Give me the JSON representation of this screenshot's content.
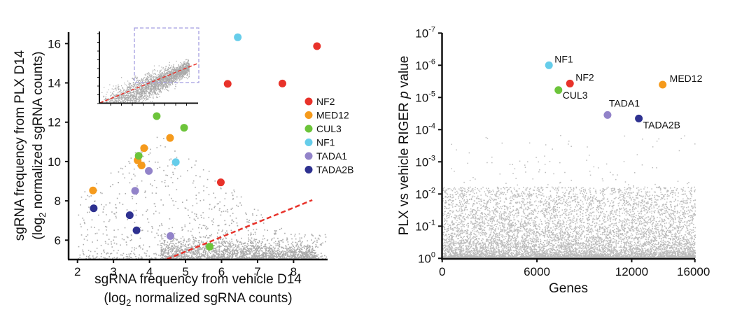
{
  "chart_data": [
    {
      "type": "scatter",
      "xlabel": [
        "sgRNA frequency from vehicle D14",
        "(log",
        "2",
        " normalized sgRNA counts)"
      ],
      "ylabel": [
        "sgRNA frequency from PLX D14",
        "(log",
        "2",
        " normalized sgRNA counts)"
      ],
      "xlim": [
        1.75,
        9.0
      ],
      "ylim": [
        5.05,
        16.55
      ],
      "xticks": [
        "2",
        "3",
        "4",
        "5",
        "6",
        "7",
        "8"
      ],
      "yticks": [
        "6",
        "8",
        "10",
        "12",
        "14",
        "16"
      ],
      "reference_line": {
        "style": "red dashed",
        "from": [
          4.48,
          5.03
        ],
        "to": [
          8.52,
          8.04
        ]
      },
      "inset": "full-range scatter with dashed box marking zoomed region and red dashed diagonal",
      "background_points": "gray, dense near x 5-8, y 5-6, sparse above",
      "legend": {
        "placement": "right",
        "entries": [
          "NF2",
          "MED12",
          "CUL3",
          "NF1",
          "TADA1",
          "TADA2B"
        ]
      },
      "colors": {
        "NF2": "#e8322a",
        "MED12": "#f59a1c",
        "CUL3": "#6cc43a",
        "NF1": "#66cdea",
        "TADA1": "#9283c9",
        "TADA2B": "#2e3190",
        "background": "#aaaaaa"
      },
      "series": [
        {
          "name": "NF2",
          "points": [
            [
              8.65,
              15.87
            ],
            [
              6.17,
              13.95
            ],
            [
              7.69,
              13.97
            ],
            [
              5.98,
              8.94
            ]
          ]
        },
        {
          "name": "MED12",
          "points": [
            [
              4.57,
              11.2
            ],
            [
              3.85,
              10.68
            ],
            [
              3.67,
              10.06
            ],
            [
              3.78,
              9.8
            ],
            [
              2.43,
              8.53
            ]
          ]
        },
        {
          "name": "CUL3",
          "points": [
            [
              4.2,
              12.31
            ],
            [
              4.96,
              11.72
            ],
            [
              3.7,
              10.29
            ],
            [
              5.67,
              5.67
            ]
          ]
        },
        {
          "name": "NF1",
          "points": [
            [
              6.45,
              16.32
            ],
            [
              4.73,
              9.97
            ]
          ]
        },
        {
          "name": "TADA1",
          "points": [
            [
              3.98,
              9.52
            ],
            [
              3.6,
              8.51
            ],
            [
              4.58,
              6.21
            ]
          ]
        },
        {
          "name": "TADA2B",
          "points": [
            [
              2.45,
              7.62
            ],
            [
              3.45,
              7.27
            ],
            [
              3.64,
              6.5
            ]
          ]
        }
      ]
    },
    {
      "type": "scatter",
      "xlabel": "Genes",
      "ylabel": [
        "PLX vs vehicle RIGER ",
        "p",
        " value"
      ],
      "xlim": [
        0,
        16000
      ],
      "ylim_log10_p": [
        0,
        -7
      ],
      "y_scale": "log (reversed)",
      "xticks": [
        "0",
        "6000",
        "12000",
        "16000"
      ],
      "yticks": [
        {
          "base": "10",
          "exp": "0"
        },
        {
          "base": "10",
          "exp": "-1"
        },
        {
          "base": "10",
          "exp": "-2"
        },
        {
          "base": "10",
          "exp": "-3"
        },
        {
          "base": "10",
          "exp": "-4"
        },
        {
          "base": "10",
          "exp": "-5"
        },
        {
          "base": "10",
          "exp": "-6"
        },
        {
          "base": "10",
          "exp": "-7"
        }
      ],
      "background_points": "gray, ~16000 genes, dense at p 0.1-1",
      "series": [
        {
          "name": "NF1",
          "gene": 6760,
          "p": 1e-06
        },
        {
          "name": "NF2",
          "gene": 8090,
          "p": 3.7e-06
        },
        {
          "name": "CUL3",
          "gene": 7360,
          "p": 5.9e-06
        },
        {
          "name": "MED12",
          "gene": 13960,
          "p": 4e-06
        },
        {
          "name": "TADA1",
          "gene": 10470,
          "p": 3.5e-05
        },
        {
          "name": "TADA2B",
          "gene": 12450,
          "p": 4.5e-05
        }
      ]
    }
  ]
}
